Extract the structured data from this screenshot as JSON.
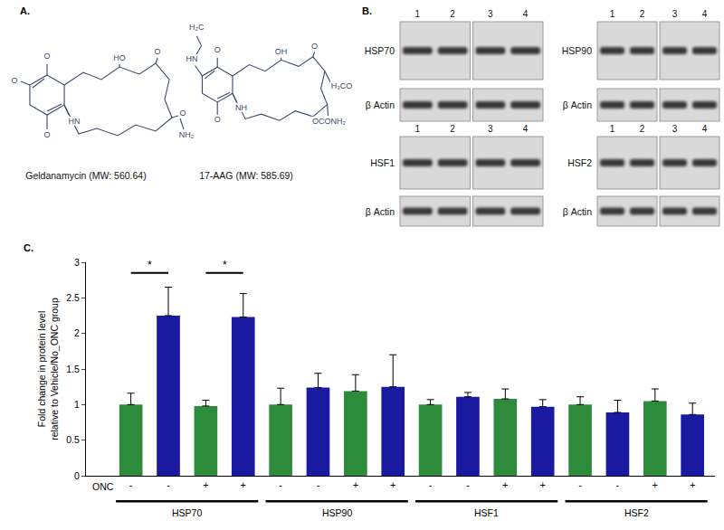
{
  "panel_a": {
    "label": "A.",
    "molecules": [
      {
        "name": "Geldanamycin (MW: 560.64)",
        "atoms": [
          "O",
          "O",
          "O",
          "HN",
          "HO",
          "O",
          "O",
          "NH₂"
        ]
      },
      {
        "name": "17-AAG (MW: 585.69)",
        "atoms": [
          "H₂C",
          "HN",
          "O",
          "O",
          "NH",
          "O",
          "OH",
          "H₃CO",
          "OCONH₂"
        ]
      }
    ]
  },
  "panel_b": {
    "label": "B.",
    "lanes": [
      "1",
      "2",
      "3",
      "4"
    ],
    "blots": [
      {
        "protein": "HSP70",
        "control": "β Actin"
      },
      {
        "protein": "HSP90",
        "control": "β Actin"
      },
      {
        "protein": "HSF1",
        "control": "β Actin"
      },
      {
        "protein": "HSF2",
        "control": "β Actin"
      }
    ]
  },
  "chart_data": {
    "panel_label": "C.",
    "type": "bar",
    "ylabel": [
      "Fold change in protein level",
      "relative to Vehicle/No_ONC group"
    ],
    "x_row_label": "ONC",
    "categories": [
      "-",
      "-",
      "+",
      "+",
      "-",
      "-",
      "+",
      "+",
      "-",
      "-",
      "+",
      "+",
      "-",
      "-",
      "+",
      "+"
    ],
    "groups": [
      {
        "label": "HSP70",
        "start": 0,
        "end": 3
      },
      {
        "label": "HSP90",
        "start": 4,
        "end": 7
      },
      {
        "label": "HSF1",
        "start": 8,
        "end": 11
      },
      {
        "label": "HSF2",
        "start": 12,
        "end": 15
      }
    ],
    "values": [
      1.0,
      2.25,
      0.98,
      2.23,
      1.0,
      1.24,
      1.19,
      1.25,
      1.0,
      1.11,
      1.08,
      0.97,
      1.0,
      0.89,
      1.05,
      0.86
    ],
    "errors": [
      0.16,
      0.4,
      0.08,
      0.33,
      0.23,
      0.2,
      0.23,
      0.45,
      0.07,
      0.06,
      0.14,
      0.1,
      0.11,
      0.17,
      0.17,
      0.16
    ],
    "colors": [
      "#2e8b3c",
      "#1a1aa0",
      "#2e8b3c",
      "#1a1aa0",
      "#2e8b3c",
      "#1a1aa0",
      "#2e8b3c",
      "#1a1aa0",
      "#2e8b3c",
      "#1a1aa0",
      "#2e8b3c",
      "#1a1aa0",
      "#2e8b3c",
      "#1a1aa0",
      "#2e8b3c",
      "#1a1aa0"
    ],
    "significance": [
      {
        "from": 0,
        "to": 1,
        "y": 2.85,
        "label": "*"
      },
      {
        "from": 2,
        "to": 3,
        "y": 2.85,
        "label": "*"
      }
    ],
    "ylim": [
      0,
      3
    ],
    "yticks": [
      0,
      0.5,
      1,
      1.5,
      2,
      2.5,
      3
    ],
    "grid": false
  }
}
